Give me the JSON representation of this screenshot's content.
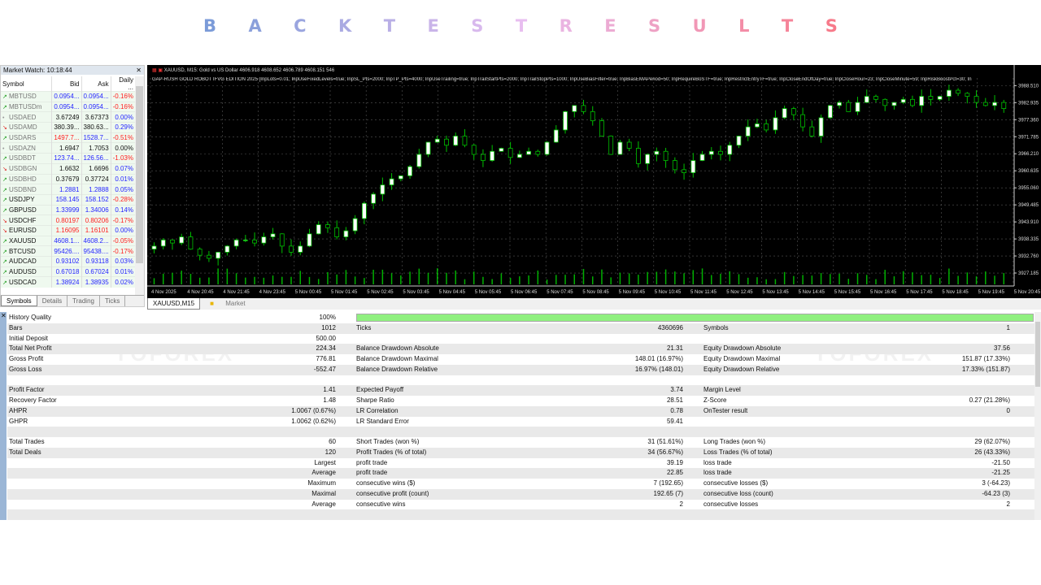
{
  "title": "BACKTEST RESULTS",
  "title_colors": [
    "#7b9bd8",
    "#f38cb8",
    "#f77a8a"
  ],
  "market_watch": {
    "header": "Market Watch: 10:18:44",
    "columns": [
      "Symbol",
      "Bid",
      "Ask",
      "Daily ..."
    ],
    "rows": [
      {
        "symbol": "MBTUSD",
        "bid": "0.0954...",
        "ask": "0.0954...",
        "daily": "-0.16%",
        "dir": "up",
        "muted": true,
        "c": [
          "b",
          "b",
          "r"
        ]
      },
      {
        "symbol": "MBTUSDm",
        "bid": "0.0954...",
        "ask": "0.0954...",
        "daily": "-0.16%",
        "dir": "up",
        "muted": true,
        "c": [
          "b",
          "b",
          "r"
        ]
      },
      {
        "symbol": "USDAED",
        "bid": "3.67249",
        "ask": "3.67373",
        "daily": "0.00%",
        "dir": "flat",
        "muted": true,
        "c": [
          "k",
          "k",
          "b"
        ]
      },
      {
        "symbol": "USDAMD",
        "bid": "380.39...",
        "ask": "380.63...",
        "daily": "0.29%",
        "dir": "down",
        "muted": true,
        "c": [
          "k",
          "k",
          "b"
        ]
      },
      {
        "symbol": "USDARS",
        "bid": "1497.7...",
        "ask": "1528.7...",
        "daily": "-0.51%",
        "dir": "up",
        "muted": true,
        "c": [
          "r",
          "b",
          "r"
        ]
      },
      {
        "symbol": "USDAZN",
        "bid": "1.6947",
        "ask": "1.7053",
        "daily": "0.00%",
        "dir": "flat",
        "muted": true,
        "c": [
          "k",
          "k",
          "k"
        ]
      },
      {
        "symbol": "USDBDT",
        "bid": "123.74...",
        "ask": "126.56...",
        "daily": "-1.03%",
        "dir": "up",
        "muted": true,
        "c": [
          "b",
          "b",
          "r"
        ]
      },
      {
        "symbol": "USDBGN",
        "bid": "1.6632",
        "ask": "1.6696",
        "daily": "0.07%",
        "dir": "down",
        "muted": true,
        "c": [
          "k",
          "k",
          "b"
        ]
      },
      {
        "symbol": "USDBHD",
        "bid": "0.37679",
        "ask": "0.37724",
        "daily": "0.01%",
        "dir": "up",
        "muted": true,
        "c": [
          "k",
          "k",
          "b"
        ]
      },
      {
        "symbol": "USDBND",
        "bid": "1.2881",
        "ask": "1.2888",
        "daily": "0.05%",
        "dir": "up",
        "muted": true,
        "c": [
          "b",
          "b",
          "b"
        ]
      },
      {
        "symbol": "USDJPY",
        "bid": "158.145",
        "ask": "158.152",
        "daily": "-0.28%",
        "dir": "up",
        "muted": false,
        "c": [
          "b",
          "b",
          "r"
        ]
      },
      {
        "symbol": "GBPUSD",
        "bid": "1.33999",
        "ask": "1.34006",
        "daily": "0.14%",
        "dir": "up",
        "muted": false,
        "c": [
          "b",
          "b",
          "b"
        ]
      },
      {
        "symbol": "USDCHF",
        "bid": "0.80197",
        "ask": "0.80206",
        "daily": "-0.17%",
        "dir": "down",
        "muted": false,
        "c": [
          "r",
          "r",
          "r"
        ]
      },
      {
        "symbol": "EURUSD",
        "bid": "1.16095",
        "ask": "1.16101",
        "daily": "0.00%",
        "dir": "down",
        "muted": false,
        "c": [
          "r",
          "r",
          "b"
        ]
      },
      {
        "symbol": "XAUUSD",
        "bid": "4608.1...",
        "ask": "4608.2...",
        "daily": "-0.05%",
        "dir": "up",
        "muted": false,
        "c": [
          "b",
          "b",
          "r"
        ]
      },
      {
        "symbol": "BTCUSD",
        "bid": "95426....",
        "ask": "95438....",
        "daily": "-0.17%",
        "dir": "up",
        "muted": false,
        "c": [
          "b",
          "b",
          "r"
        ]
      },
      {
        "symbol": "AUDCAD",
        "bid": "0.93102",
        "ask": "0.93118",
        "daily": "0.03%",
        "dir": "up",
        "muted": false,
        "c": [
          "b",
          "b",
          "b"
        ]
      },
      {
        "symbol": "AUDUSD",
        "bid": "0.67018",
        "ask": "0.67024",
        "daily": "0.01%",
        "dir": "up",
        "muted": false,
        "c": [
          "b",
          "b",
          "b"
        ]
      },
      {
        "symbol": "USDCAD",
        "bid": "1.38924",
        "ask": "1.38935",
        "daily": "0.02%",
        "dir": "up",
        "muted": false,
        "c": [
          "b",
          "b",
          "b"
        ]
      }
    ],
    "tabs": [
      "Symbols",
      "Details",
      "Trading",
      "Ticks"
    ],
    "active_tab": "Symbols"
  },
  "chart": {
    "header": "XAUUSD, M15:  Gold vs US Dollar  4606.918 4608.652 4606.789 4608.151  546",
    "params": "GAP-RUSH GOLD ROBOT IFVG EDITION 2025 [InpLots=0.01; InpUseFixedLevels=true; InpSL_Pts=2000; InpTP_Pts=4000; InpUseTrailing=true; InpTrailStartPts=2000; InpTrailStopPts=1000; InpUseBiasFilter=true; InpBiasEMAPeriod=50; InpRequireBoSTF=true; InpRestrictEntryTF=true; InpCloseEndOfDay=true; InpCloseHour=23; InpCloseMinute=59; InpRiskBoostPct=30; In",
    "price_labels": [
      "3988.510",
      "3982.935",
      "3977.360",
      "3971.785",
      "3966.210",
      "3960.635",
      "3955.060",
      "3949.485",
      "3943.910",
      "3938.335",
      "3932.760",
      "3927.185"
    ],
    "time_labels": [
      "4 Nov 2025",
      "4 Nov 20:45",
      "4 Nov 21:45",
      "4 Nov 23:45",
      "5 Nov 00:45",
      "5 Nov 01:45",
      "5 Nov 02:45",
      "5 Nov 03:45",
      "5 Nov 04:45",
      "5 Nov 05:45",
      "5 Nov 06:45",
      "5 Nov 07:45",
      "5 Nov 08:45",
      "5 Nov 09:45",
      "5 Nov 10:45",
      "5 Nov 11:45",
      "5 Nov 12:45",
      "5 Nov 13:45",
      "5 Nov 14:45",
      "5 Nov 15:45",
      "5 Nov 16:45",
      "5 Nov 17:45",
      "5 Nov 18:45",
      "5 Nov 19:45",
      "5 Nov 20:45"
    ],
    "price_range": [
      3924,
      3991
    ],
    "closes": [
      3936,
      3938,
      3937,
      3939,
      3935,
      3933,
      3932,
      3934,
      3936,
      3938,
      3938,
      3937,
      3939,
      3940,
      3936,
      3934,
      3936,
      3940,
      3943,
      3942,
      3939,
      3941,
      3945,
      3950,
      3953,
      3956,
      3958,
      3959,
      3962,
      3966,
      3970,
      3971,
      3969,
      3972,
      3969,
      3966,
      3964,
      3967,
      3968,
      3965,
      3966,
      3967,
      3966,
      3970,
      3974,
      3980,
      3982,
      3980,
      3977,
      3972,
      3966,
      3970,
      3968,
      3963,
      3966,
      3967,
      3964,
      3961,
      3960,
      3964,
      3966,
      3967,
      3966,
      3969,
      3972,
      3975,
      3976,
      3974,
      3978,
      3981,
      3979,
      3975,
      3972,
      3978,
      3982,
      3983,
      3980,
      3983,
      3985,
      3984,
      3982,
      3983,
      3984,
      3982,
      3985,
      3984,
      3985,
      3987,
      3986,
      3985,
      3983,
      3982,
      3983,
      3981
    ],
    "up_color": "#ffffff",
    "down_color": "#000000",
    "wick_color": "#00c000",
    "volume_color": "#00b000",
    "tabs": [
      "XAUUSD,M15",
      "Market"
    ],
    "active_tab": "XAUUSD,M15"
  },
  "results": {
    "history_quality_pct": 100,
    "rows": [
      [
        "History Quality",
        "100%",
        "",
        "",
        "",
        ""
      ],
      [
        "Bars",
        "1012",
        "Ticks",
        "4360696",
        "Symbols",
        "1"
      ],
      [
        "Initial Deposit",
        "500.00",
        "",
        "",
        "",
        ""
      ],
      [
        "Total Net Profit",
        "224.34",
        "Balance Drawdown Absolute",
        "21.31",
        "Equity Drawdown Absolute",
        "37.56"
      ],
      [
        "Gross Profit",
        "776.81",
        "Balance Drawdown Maximal",
        "148.01 (16.97%)",
        "Equity Drawdown Maximal",
        "151.87 (17.33%)"
      ],
      [
        "Gross Loss",
        "-552.47",
        "Balance Drawdown Relative",
        "16.97% (148.01)",
        "Equity Drawdown Relative",
        "17.33% (151.87)"
      ],
      [
        "",
        "",
        "",
        "",
        "",
        ""
      ],
      [
        "Profit Factor",
        "1.41",
        "Expected Payoff",
        "3.74",
        "Margin Level",
        ""
      ],
      [
        "Recovery Factor",
        "1.48",
        "Sharpe Ratio",
        "28.51",
        "Z-Score",
        "0.27 (21.28%)"
      ],
      [
        "AHPR",
        "1.0067 (0.67%)",
        "LR Correlation",
        "0.78",
        "OnTester result",
        "0"
      ],
      [
        "GHPR",
        "1.0062 (0.62%)",
        "LR Standard Error",
        "59.41",
        "",
        ""
      ],
      [
        "",
        "",
        "",
        "",
        "",
        ""
      ],
      [
        "Total Trades",
        "60",
        "Short Trades (won %)",
        "31 (51.61%)",
        "Long Trades (won %)",
        "29 (62.07%)"
      ],
      [
        "Total Deals",
        "120",
        "Profit Trades (% of total)",
        "34 (56.67%)",
        "Loss Trades (% of total)",
        "26 (43.33%)"
      ],
      [
        "",
        "Largest",
        "profit trade",
        "39.19",
        "loss trade",
        "-21.50"
      ],
      [
        "",
        "Average",
        "profit trade",
        "22.85",
        "loss trade",
        "-21.25"
      ],
      [
        "",
        "Maximum",
        "consecutive wins ($)",
        "7 (192.65)",
        "consecutive losses ($)",
        "3 (-64.23)"
      ],
      [
        "",
        "Maximal",
        "consecutive profit (count)",
        "192.65 (7)",
        "consecutive loss (count)",
        "-64.23 (3)"
      ],
      [
        "",
        "Average",
        "consecutive wins",
        "2",
        "consecutive losses",
        "2"
      ],
      [
        "",
        "",
        "",
        "",
        "",
        ""
      ]
    ]
  },
  "watermark": "YOFOREX"
}
